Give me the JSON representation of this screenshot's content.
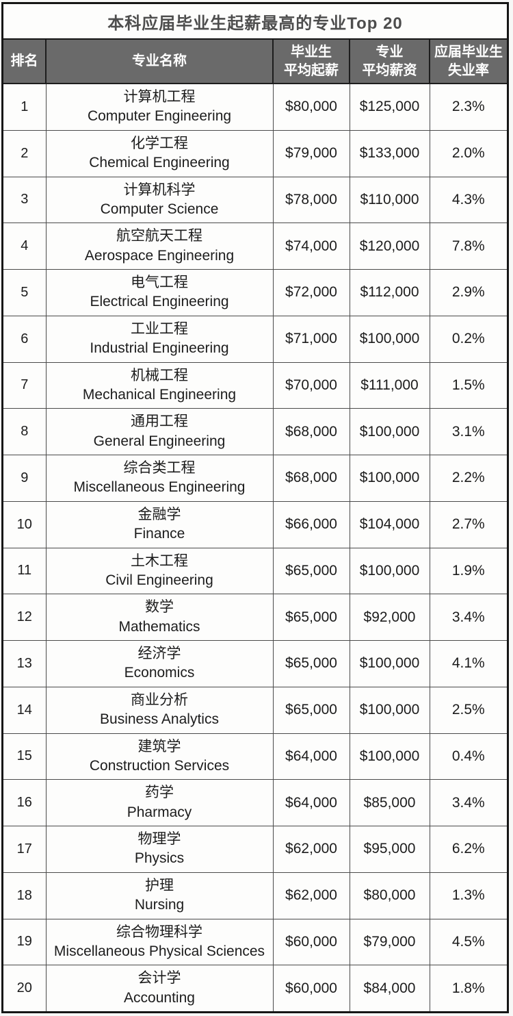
{
  "colors": {
    "outer_border": "#161616",
    "header_bg": "#6a6a6a",
    "header_text": "#ffffff",
    "title_text": "#4d4d4d",
    "body_text": "#1c1c1c",
    "cell_border": "#4a4a4a",
    "page_bg": "#fdfdfc"
  },
  "chart_data": {
    "type": "table",
    "title": "本科应届毕业生起薪最高的专业Top 20",
    "columns": [
      "排名",
      "专业名称",
      "毕业生\n平均起薪",
      "专业\n平均薪资",
      "应届毕业生\n失业率"
    ],
    "rows": [
      {
        "rank": "1",
        "major_zh": "计算机工程",
        "major_en": "Computer Engineering",
        "graduate_avg_starting_salary": "$80,000",
        "major_avg_salary": "$125,000",
        "new_grad_unemployment_rate": "2.3%"
      },
      {
        "rank": "2",
        "major_zh": "化学工程",
        "major_en": "Chemical Engineering",
        "graduate_avg_starting_salary": "$79,000",
        "major_avg_salary": "$133,000",
        "new_grad_unemployment_rate": "2.0%"
      },
      {
        "rank": "3",
        "major_zh": "计算机科学",
        "major_en": "Computer Science",
        "graduate_avg_starting_salary": "$78,000",
        "major_avg_salary": "$110,000",
        "new_grad_unemployment_rate": "4.3%"
      },
      {
        "rank": "4",
        "major_zh": "航空航天工程",
        "major_en": "Aerospace Engineering",
        "graduate_avg_starting_salary": "$74,000",
        "major_avg_salary": "$120,000",
        "new_grad_unemployment_rate": "7.8%"
      },
      {
        "rank": "5",
        "major_zh": "电气工程",
        "major_en": "Electrical Engineering",
        "graduate_avg_starting_salary": "$72,000",
        "major_avg_salary": "$112,000",
        "new_grad_unemployment_rate": "2.9%"
      },
      {
        "rank": "6",
        "major_zh": "工业工程",
        "major_en": "Industrial Engineering",
        "graduate_avg_starting_salary": "$71,000",
        "major_avg_salary": "$100,000",
        "new_grad_unemployment_rate": "0.2%"
      },
      {
        "rank": "7",
        "major_zh": "机械工程",
        "major_en": "Mechanical Engineering",
        "graduate_avg_starting_salary": "$70,000",
        "major_avg_salary": "$111,000",
        "new_grad_unemployment_rate": "1.5%"
      },
      {
        "rank": "8",
        "major_zh": "通用工程",
        "major_en": "General Engineering",
        "graduate_avg_starting_salary": "$68,000",
        "major_avg_salary": "$100,000",
        "new_grad_unemployment_rate": "3.1%"
      },
      {
        "rank": "9",
        "major_zh": "综合类工程",
        "major_en": "Miscellaneous Engineering",
        "graduate_avg_starting_salary": "$68,000",
        "major_avg_salary": "$100,000",
        "new_grad_unemployment_rate": "2.2%"
      },
      {
        "rank": "10",
        "major_zh": "金融学",
        "major_en": "Finance",
        "graduate_avg_starting_salary": "$66,000",
        "major_avg_salary": "$104,000",
        "new_grad_unemployment_rate": "2.7%"
      },
      {
        "rank": "11",
        "major_zh": "土木工程",
        "major_en": "Civil Engineering",
        "graduate_avg_starting_salary": "$65,000",
        "major_avg_salary": "$100,000",
        "new_grad_unemployment_rate": "1.9%"
      },
      {
        "rank": "12",
        "major_zh": "数学",
        "major_en": "Mathematics",
        "graduate_avg_starting_salary": "$65,000",
        "major_avg_salary": "$92,000",
        "new_grad_unemployment_rate": "3.4%"
      },
      {
        "rank": "13",
        "major_zh": "经济学",
        "major_en": "Economics",
        "graduate_avg_starting_salary": "$65,000",
        "major_avg_salary": "$100,000",
        "new_grad_unemployment_rate": "4.1%"
      },
      {
        "rank": "14",
        "major_zh": "商业分析",
        "major_en": "Business Analytics",
        "graduate_avg_starting_salary": "$65,000",
        "major_avg_salary": "$100,000",
        "new_grad_unemployment_rate": "2.5%"
      },
      {
        "rank": "15",
        "major_zh": "建筑学",
        "major_en": "Construction Services",
        "graduate_avg_starting_salary": "$64,000",
        "major_avg_salary": "$100,000",
        "new_grad_unemployment_rate": "0.4%"
      },
      {
        "rank": "16",
        "major_zh": "药学",
        "major_en": "Pharmacy",
        "graduate_avg_starting_salary": "$64,000",
        "major_avg_salary": "$85,000",
        "new_grad_unemployment_rate": "3.4%"
      },
      {
        "rank": "17",
        "major_zh": "物理学",
        "major_en": "Physics",
        "graduate_avg_starting_salary": "$62,000",
        "major_avg_salary": "$95,000",
        "new_grad_unemployment_rate": "6.2%"
      },
      {
        "rank": "18",
        "major_zh": "护理",
        "major_en": "Nursing",
        "graduate_avg_starting_salary": "$62,000",
        "major_avg_salary": "$80,000",
        "new_grad_unemployment_rate": "1.3%"
      },
      {
        "rank": "19",
        "major_zh": "综合物理科学",
        "major_en": "Miscellaneous Physical Sciences",
        "graduate_avg_starting_salary": "$60,000",
        "major_avg_salary": "$79,000",
        "new_grad_unemployment_rate": "4.5%"
      },
      {
        "rank": "20",
        "major_zh": "会计学",
        "major_en": "Accounting",
        "graduate_avg_starting_salary": "$60,000",
        "major_avg_salary": "$84,000",
        "new_grad_unemployment_rate": "1.8%"
      }
    ]
  }
}
